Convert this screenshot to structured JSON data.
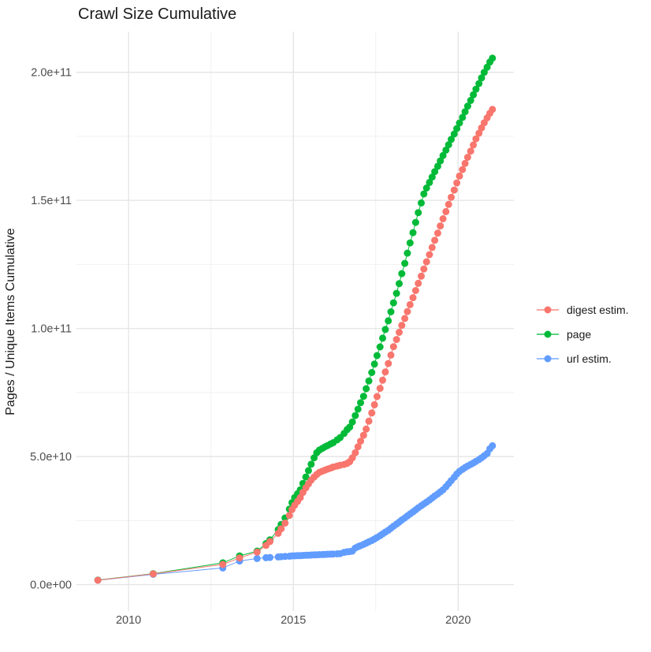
{
  "page": {
    "title": "Crawl Size Cumulative"
  },
  "chart_data": {
    "type": "line",
    "title": "Crawl Size Cumulative",
    "xlabel": "",
    "ylabel": "Pages / Unique Items Cumulative",
    "value_unit_e9_note": "series values are billions (1e9) of pages/items",
    "xlim": [
      2008.42,
      2021.69
    ],
    "ylim_e9": [
      -10.3,
      215.9
    ],
    "grid": true,
    "legend_position": "right",
    "x_ticks": [
      {
        "value": 2010,
        "label": "2010"
      },
      {
        "value": 2015,
        "label": "2015"
      },
      {
        "value": 2020,
        "label": "2020"
      }
    ],
    "x_minor_ticks": [
      2012.5,
      2017.5
    ],
    "y_ticks": [
      {
        "value_e9": 0,
        "label": "0.0e+00"
      },
      {
        "value_e9": 50,
        "label": "5.0e+10"
      },
      {
        "value_e9": 100,
        "label": "1.0e+11"
      },
      {
        "value_e9": 150,
        "label": "1.5e+11"
      },
      {
        "value_e9": 200,
        "label": "2.0e+11"
      }
    ],
    "y_minor_ticks_e9": [
      25,
      75,
      125,
      175
    ],
    "series": [
      {
        "name": "digest estim.",
        "color": "#F8766D",
        "z": 2,
        "points": [
          [
            2009.07,
            1.7
          ],
          [
            2010.75,
            4.2
          ],
          [
            2012.86,
            7.9
          ],
          [
            2013.37,
            10.4
          ],
          [
            2013.9,
            12.7
          ],
          [
            2014.17,
            15.3
          ],
          [
            2014.29,
            16.8
          ],
          [
            2014.54,
            20.0
          ],
          [
            2014.63,
            21.8
          ],
          [
            2014.75,
            24.0
          ],
          [
            2014.88,
            27.0
          ],
          [
            2014.96,
            29.3
          ],
          [
            2015.04,
            31.0
          ],
          [
            2015.13,
            32.5
          ],
          [
            2015.21,
            34.0
          ],
          [
            2015.29,
            36.0
          ],
          [
            2015.38,
            37.8
          ],
          [
            2015.46,
            39.3
          ],
          [
            2015.54,
            40.8
          ],
          [
            2015.63,
            42.0
          ],
          [
            2015.71,
            43.0
          ],
          [
            2015.79,
            43.8
          ],
          [
            2015.88,
            44.3
          ],
          [
            2015.96,
            44.7
          ],
          [
            2016.04,
            45.1
          ],
          [
            2016.13,
            45.5
          ],
          [
            2016.21,
            45.9
          ],
          [
            2016.33,
            46.3
          ],
          [
            2016.42,
            46.6
          ],
          [
            2016.54,
            46.9
          ],
          [
            2016.63,
            47.3
          ],
          [
            2016.71,
            48.0
          ],
          [
            2016.79,
            49.5
          ],
          [
            2016.88,
            51.5
          ],
          [
            2016.96,
            53.8
          ],
          [
            2017.04,
            56.0
          ],
          [
            2017.13,
            58.3
          ],
          [
            2017.21,
            60.7
          ],
          [
            2017.29,
            63.8
          ],
          [
            2017.38,
            67.0
          ],
          [
            2017.46,
            70.2
          ],
          [
            2017.54,
            73.4
          ],
          [
            2017.63,
            76.6
          ],
          [
            2017.71,
            79.8
          ],
          [
            2017.79,
            83.0
          ],
          [
            2017.88,
            86.3
          ],
          [
            2017.96,
            89.6
          ],
          [
            2018.04,
            92.9
          ],
          [
            2018.13,
            95.7
          ],
          [
            2018.21,
            98.5
          ],
          [
            2018.29,
            101.2
          ],
          [
            2018.38,
            103.9
          ],
          [
            2018.46,
            106.6
          ],
          [
            2018.54,
            109.3
          ],
          [
            2018.63,
            112.0
          ],
          [
            2018.71,
            114.8
          ],
          [
            2018.79,
            117.6
          ],
          [
            2018.88,
            120.4
          ],
          [
            2018.96,
            123.2
          ],
          [
            2019.04,
            126.0
          ],
          [
            2019.13,
            128.8
          ],
          [
            2019.21,
            131.6
          ],
          [
            2019.29,
            134.4
          ],
          [
            2019.38,
            137.2
          ],
          [
            2019.46,
            140.0
          ],
          [
            2019.54,
            142.8
          ],
          [
            2019.63,
            145.6
          ],
          [
            2019.71,
            148.4
          ],
          [
            2019.79,
            151.2
          ],
          [
            2019.88,
            154.0
          ],
          [
            2019.96,
            156.8
          ],
          [
            2020.04,
            159.5
          ],
          [
            2020.13,
            162.0
          ],
          [
            2020.21,
            164.4
          ],
          [
            2020.29,
            166.8
          ],
          [
            2020.38,
            169.2
          ],
          [
            2020.46,
            171.6
          ],
          [
            2020.54,
            174.0
          ],
          [
            2020.63,
            176.2
          ],
          [
            2020.71,
            178.3
          ],
          [
            2020.79,
            180.3
          ],
          [
            2020.88,
            182.2
          ],
          [
            2020.96,
            184.0
          ],
          [
            2021.04,
            185.5
          ]
        ]
      },
      {
        "name": "page",
        "color": "#00BA38",
        "z": 0,
        "points": [
          [
            2009.07,
            1.8
          ],
          [
            2010.75,
            4.3
          ],
          [
            2012.86,
            8.5
          ],
          [
            2013.37,
            11.2
          ],
          [
            2013.9,
            13.1
          ],
          [
            2014.17,
            16.0
          ],
          [
            2014.29,
            17.5
          ],
          [
            2014.54,
            21.5
          ],
          [
            2014.63,
            23.5
          ],
          [
            2014.75,
            26.0
          ],
          [
            2014.88,
            29.5
          ],
          [
            2014.96,
            32.0
          ],
          [
            2015.04,
            34.0
          ],
          [
            2015.13,
            35.5
          ],
          [
            2015.21,
            37.0
          ],
          [
            2015.29,
            39.5
          ],
          [
            2015.38,
            42.0
          ],
          [
            2015.46,
            44.5
          ],
          [
            2015.54,
            47.0
          ],
          [
            2015.63,
            49.5
          ],
          [
            2015.71,
            51.5
          ],
          [
            2015.79,
            52.5
          ],
          [
            2015.88,
            53.2
          ],
          [
            2015.96,
            53.8
          ],
          [
            2016.04,
            54.3
          ],
          [
            2016.13,
            54.9
          ],
          [
            2016.21,
            55.4
          ],
          [
            2016.33,
            56.5
          ],
          [
            2016.42,
            57.4
          ],
          [
            2016.54,
            59.0
          ],
          [
            2016.63,
            60.5
          ],
          [
            2016.71,
            61.5
          ],
          [
            2016.79,
            63.5
          ],
          [
            2016.88,
            66.0
          ],
          [
            2016.96,
            68.5
          ],
          [
            2017.04,
            71.0
          ],
          [
            2017.13,
            73.5
          ],
          [
            2017.21,
            76.5
          ],
          [
            2017.29,
            79.5
          ],
          [
            2017.38,
            82.8
          ],
          [
            2017.46,
            86.1
          ],
          [
            2017.54,
            89.4
          ],
          [
            2017.63,
            92.8
          ],
          [
            2017.71,
            96.2
          ],
          [
            2017.79,
            99.6
          ],
          [
            2017.88,
            103.0
          ],
          [
            2017.96,
            106.5
          ],
          [
            2018.04,
            110.0
          ],
          [
            2018.13,
            113.7
          ],
          [
            2018.21,
            117.5
          ],
          [
            2018.29,
            121.4
          ],
          [
            2018.38,
            125.4
          ],
          [
            2018.46,
            129.4
          ],
          [
            2018.54,
            133.4
          ],
          [
            2018.63,
            137.4
          ],
          [
            2018.71,
            141.4
          ],
          [
            2018.79,
            145.2
          ],
          [
            2018.88,
            149.0
          ],
          [
            2018.96,
            152.5
          ],
          [
            2019.04,
            154.8
          ],
          [
            2019.13,
            157.0
          ],
          [
            2019.21,
            159.1
          ],
          [
            2019.29,
            161.2
          ],
          [
            2019.38,
            163.3
          ],
          [
            2019.46,
            165.4
          ],
          [
            2019.54,
            167.5
          ],
          [
            2019.63,
            169.6
          ],
          [
            2019.71,
            171.7
          ],
          [
            2019.79,
            173.8
          ],
          [
            2019.88,
            175.9
          ],
          [
            2019.96,
            178.0
          ],
          [
            2020.04,
            180.2
          ],
          [
            2020.13,
            182.4
          ],
          [
            2020.21,
            184.6
          ],
          [
            2020.29,
            186.8
          ],
          [
            2020.38,
            189.0
          ],
          [
            2020.46,
            191.2
          ],
          [
            2020.54,
            193.4
          ],
          [
            2020.63,
            195.6
          ],
          [
            2020.71,
            197.8
          ],
          [
            2020.79,
            200.0
          ],
          [
            2020.88,
            202.0
          ],
          [
            2020.96,
            204.0
          ],
          [
            2021.04,
            205.5
          ]
        ]
      },
      {
        "name": "url estim.",
        "color": "#619CFF",
        "z": 1,
        "points": [
          [
            2009.07,
            1.7
          ],
          [
            2010.75,
            4.0
          ],
          [
            2012.86,
            6.5
          ],
          [
            2013.37,
            9.2
          ],
          [
            2013.9,
            10.2
          ],
          [
            2014.17,
            10.5
          ],
          [
            2014.29,
            10.6
          ],
          [
            2014.54,
            10.8
          ],
          [
            2014.63,
            10.9
          ],
          [
            2014.75,
            11.0
          ],
          [
            2014.88,
            11.1
          ],
          [
            2014.96,
            11.2
          ],
          [
            2015.04,
            11.25
          ],
          [
            2015.13,
            11.3
          ],
          [
            2015.21,
            11.35
          ],
          [
            2015.29,
            11.4
          ],
          [
            2015.38,
            11.45
          ],
          [
            2015.46,
            11.5
          ],
          [
            2015.54,
            11.55
          ],
          [
            2015.63,
            11.6
          ],
          [
            2015.71,
            11.65
          ],
          [
            2015.79,
            11.7
          ],
          [
            2015.88,
            11.75
          ],
          [
            2015.96,
            11.8
          ],
          [
            2016.04,
            11.85
          ],
          [
            2016.13,
            11.9
          ],
          [
            2016.21,
            11.95
          ],
          [
            2016.33,
            12.0
          ],
          [
            2016.42,
            12.1
          ],
          [
            2016.54,
            12.6
          ],
          [
            2016.63,
            12.8
          ],
          [
            2016.71,
            12.9
          ],
          [
            2016.79,
            13.1
          ],
          [
            2016.88,
            14.3
          ],
          [
            2016.96,
            14.8
          ],
          [
            2017.04,
            15.2
          ],
          [
            2017.13,
            15.7
          ],
          [
            2017.21,
            16.2
          ],
          [
            2017.29,
            16.7
          ],
          [
            2017.38,
            17.2
          ],
          [
            2017.46,
            17.8
          ],
          [
            2017.54,
            18.4
          ],
          [
            2017.63,
            19.1
          ],
          [
            2017.71,
            19.8
          ],
          [
            2017.79,
            20.5
          ],
          [
            2017.88,
            21.2
          ],
          [
            2017.96,
            22.0
          ],
          [
            2018.04,
            22.8
          ],
          [
            2018.13,
            23.6
          ],
          [
            2018.21,
            24.4
          ],
          [
            2018.29,
            25.2
          ],
          [
            2018.38,
            26.0
          ],
          [
            2018.46,
            26.8
          ],
          [
            2018.54,
            27.6
          ],
          [
            2018.63,
            28.4
          ],
          [
            2018.71,
            29.2
          ],
          [
            2018.79,
            30.0
          ],
          [
            2018.88,
            30.8
          ],
          [
            2018.96,
            31.5
          ],
          [
            2019.04,
            32.2
          ],
          [
            2019.13,
            33.0
          ],
          [
            2019.21,
            33.8
          ],
          [
            2019.29,
            34.6
          ],
          [
            2019.38,
            35.4
          ],
          [
            2019.46,
            36.2
          ],
          [
            2019.54,
            37.0
          ],
          [
            2019.63,
            38.2
          ],
          [
            2019.71,
            39.4
          ],
          [
            2019.79,
            40.6
          ],
          [
            2019.88,
            41.9
          ],
          [
            2019.96,
            43.2
          ],
          [
            2020.04,
            44.2
          ],
          [
            2020.13,
            45.0
          ],
          [
            2020.21,
            45.7
          ],
          [
            2020.29,
            46.3
          ],
          [
            2020.38,
            46.9
          ],
          [
            2020.46,
            47.5
          ],
          [
            2020.54,
            48.1
          ],
          [
            2020.63,
            48.8
          ],
          [
            2020.71,
            49.5
          ],
          [
            2020.79,
            50.3
          ],
          [
            2020.88,
            51.2
          ],
          [
            2020.96,
            53.0
          ],
          [
            2021.04,
            54.2
          ]
        ]
      }
    ]
  }
}
